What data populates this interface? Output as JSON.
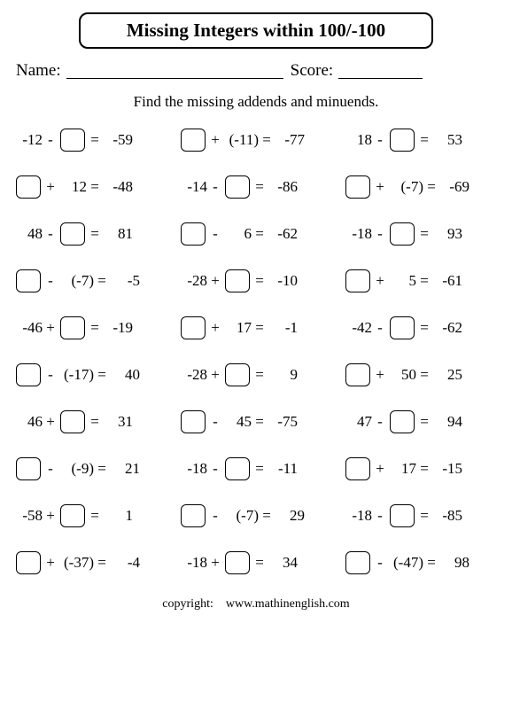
{
  "title": "Missing Integers within 100/-100",
  "name_label": "Name:",
  "score_label": "Score:",
  "instructions": "Find the missing addends and minuends.",
  "copyright_label": "copyright:",
  "copyright_site": "www.mathinenglish.com",
  "colors": {
    "border": "#000000",
    "text": "#000000",
    "background": "#ffffff"
  },
  "fonts": {
    "title_size_pt": 16,
    "body_size_pt": 13,
    "family": "Times New Roman"
  },
  "layout": {
    "rows": 10,
    "cols": 3
  },
  "problems": [
    {
      "a": "-12",
      "blank": "b",
      "op": "-",
      "b": "",
      "eq": "-59"
    },
    {
      "a": "",
      "blank": "a",
      "op": "+",
      "b": "(-11)",
      "eq": "-77"
    },
    {
      "a": "18",
      "blank": "b",
      "op": "-",
      "b": "",
      "eq": "53"
    },
    {
      "a": "",
      "blank": "a",
      "op": "+",
      "b": "12",
      "eq": "-48"
    },
    {
      "a": "-14",
      "blank": "b",
      "op": "-",
      "b": "",
      "eq": "-86"
    },
    {
      "a": "",
      "blank": "a",
      "op": "+",
      "b": "(-7)",
      "eq": "-69"
    },
    {
      "a": "48",
      "blank": "b",
      "op": "-",
      "b": "",
      "eq": "81"
    },
    {
      "a": "",
      "blank": "a",
      "op": "-",
      "b": "6",
      "eq": "-62"
    },
    {
      "a": "-18",
      "blank": "b",
      "op": "-",
      "b": "",
      "eq": "93"
    },
    {
      "a": "",
      "blank": "a",
      "op": "-",
      "b": "(-7)",
      "eq": "-5"
    },
    {
      "a": "-28",
      "blank": "b",
      "op": "+",
      "b": "",
      "eq": "-10"
    },
    {
      "a": "",
      "blank": "a",
      "op": "+",
      "b": "5",
      "eq": "-61"
    },
    {
      "a": "-46",
      "blank": "b",
      "op": "+",
      "b": "",
      "eq": "-19"
    },
    {
      "a": "",
      "blank": "a",
      "op": "+",
      "b": "17",
      "eq": "-1"
    },
    {
      "a": "-42",
      "blank": "b",
      "op": "-",
      "b": "",
      "eq": "-62"
    },
    {
      "a": "",
      "blank": "a",
      "op": "-",
      "b": "(-17)",
      "eq": "40"
    },
    {
      "a": "-28",
      "blank": "b",
      "op": "+",
      "b": "",
      "eq": "9"
    },
    {
      "a": "",
      "blank": "a",
      "op": "+",
      "b": "50",
      "eq": "25"
    },
    {
      "a": "46",
      "blank": "b",
      "op": "+",
      "b": "",
      "eq": "31"
    },
    {
      "a": "",
      "blank": "a",
      "op": "-",
      "b": "45",
      "eq": "-75"
    },
    {
      "a": "47",
      "blank": "b",
      "op": "-",
      "b": "",
      "eq": "94"
    },
    {
      "a": "",
      "blank": "a",
      "op": "-",
      "b": "(-9)",
      "eq": "21"
    },
    {
      "a": "-18",
      "blank": "b",
      "op": "-",
      "b": "",
      "eq": "-11"
    },
    {
      "a": "",
      "blank": "a",
      "op": "+",
      "b": "17",
      "eq": "-15"
    },
    {
      "a": "-58",
      "blank": "b",
      "op": "+",
      "b": "",
      "eq": "1"
    },
    {
      "a": "",
      "blank": "a",
      "op": "-",
      "b": "(-7)",
      "eq": "29"
    },
    {
      "a": "-18",
      "blank": "b",
      "op": "-",
      "b": "",
      "eq": "-85"
    },
    {
      "a": "",
      "blank": "a",
      "op": "+",
      "b": "(-37)",
      "eq": "-4"
    },
    {
      "a": "-18",
      "blank": "b",
      "op": "+",
      "b": "",
      "eq": "34"
    },
    {
      "a": "",
      "blank": "a",
      "op": "-",
      "b": "(-47)",
      "eq": "98"
    }
  ]
}
